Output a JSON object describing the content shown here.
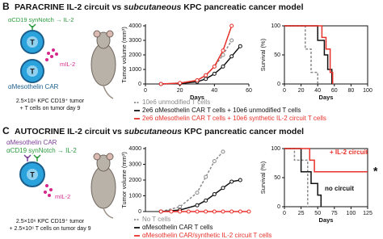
{
  "panels": [
    {
      "letter": "B",
      "title": [
        "PARACRINE IL-2 circuit vs ",
        "subcutaneous",
        " KPC pancreatic cancer model"
      ],
      "diagram": {
        "receptor": "αCD19 synNotch → IL-2",
        "cytokine": "mIL-2",
        "car": "αMesothelin CAR",
        "cell": [
          "T",
          "T"
        ],
        "caption": [
          "2.5×10⁶ KPC CD19⁺ tumor",
          "+ T cells on tumor day 9"
        ]
      }
    },
    {
      "letter": "C",
      "title": [
        "AUTOCRINE IL-2 circuit vs ",
        "subcutaneous",
        " KPC pancreatic cancer model"
      ],
      "diagram": {
        "car": "αMesothelin CAR",
        "receptor": "αCD19 synNotch → IL-2",
        "cytokine": "mIL-2",
        "cell": [
          "T"
        ],
        "caption": [
          "2.5×10⁶ KPC CD19⁺ tumor",
          "+ 2.5×10⁶ T cells on tumor day 9"
        ]
      }
    }
  ],
  "chart_data": [
    {
      "type": "line",
      "ylabel": "Tumor volume (mm³)",
      "xlabel": "Days",
      "xlim": [
        0,
        60
      ],
      "ylim": [
        0,
        4000
      ],
      "xticks": [
        0,
        20,
        40,
        60
      ],
      "yticks": [
        0,
        1000,
        2000,
        3000,
        4000
      ],
      "markers": true,
      "legend": "below",
      "series": [
        {
          "name": "10e6 unmodified T cells",
          "color": "#8a8a8a",
          "dash": true,
          "x": [
            9,
            20,
            30,
            35,
            40,
            45,
            50
          ],
          "values": [
            0,
            50,
            250,
            600,
            1200,
            2000,
            3000
          ]
        },
        {
          "name": "2e6 αMesothelin CAR T cells + 10e6 unmodified T cells",
          "color": "#111111",
          "dash": false,
          "x": [
            9,
            20,
            30,
            35,
            40,
            45,
            50,
            55
          ],
          "values": [
            0,
            30,
            150,
            350,
            700,
            1200,
            1900,
            2600
          ]
        },
        {
          "name": "2e6 αMesothelin CAR T cells + 10e6 synthetic IL-2 circuit T cells",
          "color": "#e8312a",
          "dash": false,
          "x": [
            9,
            20,
            30,
            35,
            40,
            45,
            50
          ],
          "values": [
            0,
            60,
            250,
            600,
            1200,
            2300,
            4000
          ]
        }
      ]
    },
    {
      "type": "line",
      "ylabel": "Survival (%)",
      "xlabel": "Days",
      "xlim": [
        0,
        100
      ],
      "ylim": [
        0,
        100
      ],
      "xticks": [
        0,
        20,
        40,
        60,
        80,
        100
      ],
      "yticks": [
        0,
        50,
        100
      ],
      "markers": false,
      "frame": true,
      "series": [
        {
          "color": "#8a8a8a",
          "dash": true,
          "x": [
            0,
            25,
            25,
            32,
            32,
            40,
            40
          ],
          "values": [
            100,
            100,
            60,
            60,
            20,
            20,
            0
          ]
        },
        {
          "color": "#111111",
          "dash": false,
          "x": [
            0,
            40,
            40,
            48,
            48,
            52,
            52,
            57,
            57
          ],
          "values": [
            100,
            100,
            75,
            75,
            50,
            50,
            25,
            25,
            0
          ]
        },
        {
          "color": "#e8312a",
          "dash": false,
          "x": [
            0,
            45,
            45,
            50,
            50,
            55,
            55,
            58,
            58
          ],
          "values": [
            100,
            100,
            80,
            80,
            60,
            60,
            20,
            20,
            0
          ]
        }
      ]
    },
    {
      "type": "line",
      "ylabel": "Tumor volume (mm³)",
      "xlim": [
        0,
        60
      ],
      "ylim": [
        0,
        4000
      ],
      "yticks": [
        0,
        1000,
        2000,
        3000,
        4000
      ],
      "markers": true,
      "legend": "below",
      "series": [
        {
          "name": "No T cells",
          "color": "#8a8a8a",
          "dash": true,
          "x": [
            9,
            20,
            30,
            35,
            40,
            45
          ],
          "values": [
            0,
            300,
            1200,
            2200,
            3200,
            3800
          ]
        },
        {
          "name": "αMesothelin CAR T cells",
          "color": "#111111",
          "dash": false,
          "x": [
            9,
            20,
            30,
            35,
            40,
            45,
            50,
            55
          ],
          "values": [
            0,
            100,
            400,
            700,
            1100,
            1500,
            1900,
            2000
          ]
        },
        {
          "name": "αMesothelin CAR/synthetic IL-2 circuit T cells",
          "color": "#e8312a",
          "dash": false,
          "x": [
            9,
            15,
            20,
            25,
            30,
            35,
            40,
            45,
            50,
            55,
            60
          ],
          "values": [
            0,
            0,
            0,
            0,
            0,
            0,
            0,
            0,
            0,
            0,
            0
          ]
        }
      ]
    },
    {
      "type": "line",
      "ylabel": "Survival (%)",
      "xlabel": "Days",
      "xlim": [
        0,
        125
      ],
      "ylim": [
        0,
        100
      ],
      "xticks": [
        0,
        25,
        50,
        75,
        100,
        125
      ],
      "yticks": [
        0,
        50,
        100
      ],
      "markers": false,
      "frame": true,
      "series": [
        {
          "color": "#8a8a8a",
          "dash": true,
          "x": [
            0,
            15,
            15,
            35,
            35
          ],
          "values": [
            100,
            100,
            80,
            80,
            0
          ]
        },
        {
          "color": "#111111",
          "dash": false,
          "x": [
            0,
            25,
            25,
            40,
            40,
            50,
            50,
            55,
            55
          ],
          "values": [
            100,
            100,
            60,
            60,
            40,
            40,
            20,
            20,
            0
          ]
        },
        {
          "color": "#e8312a",
          "dash": false,
          "x": [
            0,
            38,
            38,
            45,
            45,
            125
          ],
          "values": [
            100,
            100,
            80,
            80,
            60,
            60
          ]
        }
      ],
      "annotations": [
        {
          "text": "+ IL-2 circuit",
          "color": "#e8312a"
        },
        {
          "text": "*",
          "color": "#111111"
        },
        {
          "text": "no circuit",
          "color": "#111111"
        }
      ]
    }
  ]
}
